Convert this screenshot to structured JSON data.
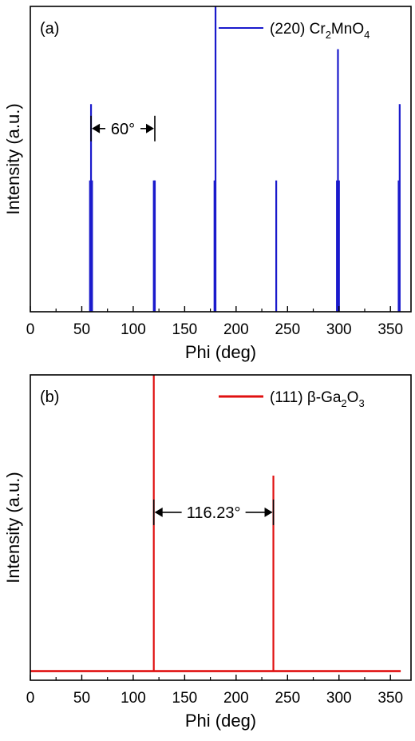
{
  "chart_data": [
    {
      "type": "line",
      "panel_label": "(a)",
      "xlabel": "Phi (deg)",
      "ylabel": "Intensity (a.u.)",
      "xlim": [
        0,
        370
      ],
      "x_ticks": [
        0,
        50,
        100,
        150,
        200,
        250,
        300,
        350
      ],
      "ylim": [
        0,
        1
      ],
      "series": [
        {
          "legend": {
            "prefix": "(220) Cr",
            "sub1": "2",
            "mid": "MnO",
            "sub2": "4"
          },
          "color": "#1a1acc",
          "peaks": [
            {
              "x": 58,
              "y": 0.43
            },
            {
              "x": 59,
              "y": 0.68
            },
            {
              "x": 60,
              "y": 0.43
            },
            {
              "x": 120,
              "y": 0.43
            },
            {
              "x": 121,
              "y": 0.43
            },
            {
              "x": 179,
              "y": 0.43
            },
            {
              "x": 180,
              "y": 1.0
            },
            {
              "x": 239,
              "y": 0.43
            },
            {
              "x": 298,
              "y": 0.43
            },
            {
              "x": 299,
              "y": 0.86
            },
            {
              "x": 300,
              "y": 0.43
            },
            {
              "x": 358,
              "y": 0.43
            },
            {
              "x": 359,
              "y": 0.68
            }
          ]
        }
      ],
      "annotation": {
        "text": "60°",
        "x1": 59,
        "x2": 121,
        "y": 0.6
      }
    },
    {
      "type": "line",
      "panel_label": "(b)",
      "xlabel": "Phi (deg)",
      "ylabel": "Intensity (a.u.)",
      "xlim": [
        0,
        370
      ],
      "x_ticks": [
        0,
        50,
        100,
        150,
        200,
        250,
        300,
        350
      ],
      "ylim": [
        0,
        1
      ],
      "series": [
        {
          "legend": {
            "prefix": "(111) β-Ga",
            "sub1": "2",
            "mid": "O",
            "sub2": "3"
          },
          "color": "#e01010",
          "baseline": 0.03,
          "x_range": [
            0,
            360
          ],
          "peaks": [
            {
              "x": 120,
              "y": 1.0
            },
            {
              "x": 236.23,
              "y": 0.67
            }
          ]
        }
      ],
      "annotation": {
        "text": "116.23°",
        "x1": 120,
        "x2": 236.23,
        "y": 0.55
      }
    }
  ]
}
